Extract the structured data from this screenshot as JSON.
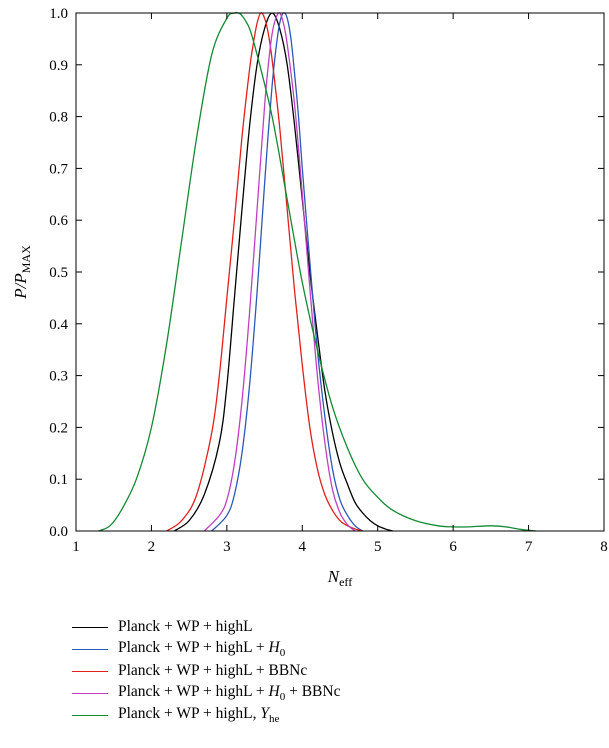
{
  "chart_data": {
    "type": "line",
    "xlabel": "N",
    "xlabel_sub": "eff",
    "ylabel": "P/P",
    "ylabel_sub": "MAX",
    "xlim": [
      1,
      8
    ],
    "ylim": [
      0,
      1
    ],
    "x_ticks": [
      "1",
      "2",
      "3",
      "4",
      "5",
      "6",
      "7",
      "8"
    ],
    "y_ticks": [
      "0.0",
      "0.1",
      "0.2",
      "0.3",
      "0.4",
      "0.5",
      "0.6",
      "0.7",
      "0.8",
      "0.9",
      "1.0"
    ],
    "grid": false,
    "legend_position": "bottom",
    "series": [
      {
        "name": "Planck + WP + highL",
        "name_parts": [
          "Planck + WP + highL"
        ],
        "color": "#000000",
        "x": [
          2.3,
          2.5,
          2.7,
          2.9,
          3.0,
          3.1,
          3.2,
          3.3,
          3.4,
          3.5,
          3.6,
          3.7,
          3.8,
          3.9,
          4.0,
          4.1,
          4.2,
          4.3,
          4.4,
          4.5,
          4.6,
          4.7,
          4.8,
          4.9,
          5.0,
          5.1,
          5.2
        ],
        "y": [
          0.0,
          0.02,
          0.07,
          0.17,
          0.28,
          0.45,
          0.62,
          0.78,
          0.9,
          0.97,
          1.0,
          0.97,
          0.9,
          0.78,
          0.64,
          0.5,
          0.38,
          0.27,
          0.19,
          0.13,
          0.09,
          0.055,
          0.035,
          0.02,
          0.01,
          0.004,
          0.0
        ]
      },
      {
        "name": "Planck + WP + highL + H0",
        "name_parts": [
          "Planck + WP + highL + ",
          "H",
          "0"
        ],
        "color": "#2b59b5",
        "x": [
          2.8,
          3.0,
          3.1,
          3.2,
          3.3,
          3.4,
          3.5,
          3.55,
          3.6,
          3.65,
          3.7,
          3.75,
          3.8,
          3.85,
          3.9,
          3.95,
          4.0,
          4.1,
          4.2,
          4.3,
          4.4,
          4.5,
          4.6,
          4.7,
          4.8
        ],
        "y": [
          0.0,
          0.03,
          0.07,
          0.15,
          0.28,
          0.46,
          0.67,
          0.77,
          0.86,
          0.93,
          0.98,
          1.0,
          0.99,
          0.95,
          0.88,
          0.8,
          0.7,
          0.52,
          0.35,
          0.22,
          0.12,
          0.06,
          0.03,
          0.01,
          0.0
        ]
      },
      {
        "name": "Planck + WP + highL + BBNc",
        "name_parts": [
          "Planck + WP + highL + BBNc"
        ],
        "color": "#e0201b",
        "x": [
          2.2,
          2.4,
          2.6,
          2.8,
          2.9,
          3.0,
          3.1,
          3.2,
          3.3,
          3.35,
          3.4,
          3.45,
          3.5,
          3.55,
          3.6,
          3.7,
          3.8,
          3.9,
          4.0,
          4.1,
          4.2,
          4.3,
          4.4,
          4.5,
          4.6,
          4.7,
          4.8
        ],
        "y": [
          0.0,
          0.02,
          0.07,
          0.19,
          0.3,
          0.45,
          0.6,
          0.76,
          0.89,
          0.94,
          0.98,
          1.0,
          0.99,
          0.96,
          0.91,
          0.78,
          0.62,
          0.46,
          0.32,
          0.2,
          0.12,
          0.07,
          0.04,
          0.02,
          0.01,
          0.004,
          0.0
        ]
      },
      {
        "name": "Planck + WP + highL + H0 + BBNc",
        "name_parts": [
          "Planck + WP + highL + ",
          "H",
          "0",
          " + BBNc"
        ],
        "color": "#c040c0",
        "x": [
          2.7,
          2.9,
          3.0,
          3.1,
          3.2,
          3.3,
          3.4,
          3.5,
          3.55,
          3.6,
          3.65,
          3.7,
          3.75,
          3.8,
          3.9,
          4.0,
          4.1,
          4.2,
          4.3,
          4.4,
          4.5,
          4.6,
          4.7
        ],
        "y": [
          0.0,
          0.03,
          0.06,
          0.13,
          0.25,
          0.42,
          0.62,
          0.82,
          0.9,
          0.96,
          0.99,
          1.0,
          0.98,
          0.94,
          0.82,
          0.65,
          0.47,
          0.3,
          0.17,
          0.08,
          0.035,
          0.012,
          0.0
        ]
      },
      {
        "name": "Planck + WP + highL, Yhe",
        "name_parts": [
          "Planck + WP + highL, ",
          "Y",
          "he"
        ],
        "color": "#138a33",
        "x": [
          1.3,
          1.45,
          1.6,
          1.8,
          2.0,
          2.2,
          2.4,
          2.6,
          2.8,
          3.0,
          3.1,
          3.15,
          3.2,
          3.3,
          3.4,
          3.6,
          3.8,
          4.0,
          4.2,
          4.4,
          4.6,
          4.8,
          5.0,
          5.2,
          5.5,
          5.8,
          6.0,
          6.2,
          6.5,
          6.7,
          6.9,
          7.1
        ],
        "y": [
          0.0,
          0.01,
          0.04,
          0.1,
          0.2,
          0.36,
          0.56,
          0.76,
          0.92,
          0.99,
          1.0,
          1.0,
          0.995,
          0.97,
          0.92,
          0.8,
          0.64,
          0.48,
          0.35,
          0.24,
          0.16,
          0.1,
          0.065,
          0.04,
          0.02,
          0.01,
          0.008,
          0.008,
          0.01,
          0.008,
          0.003,
          0.0
        ]
      }
    ]
  }
}
